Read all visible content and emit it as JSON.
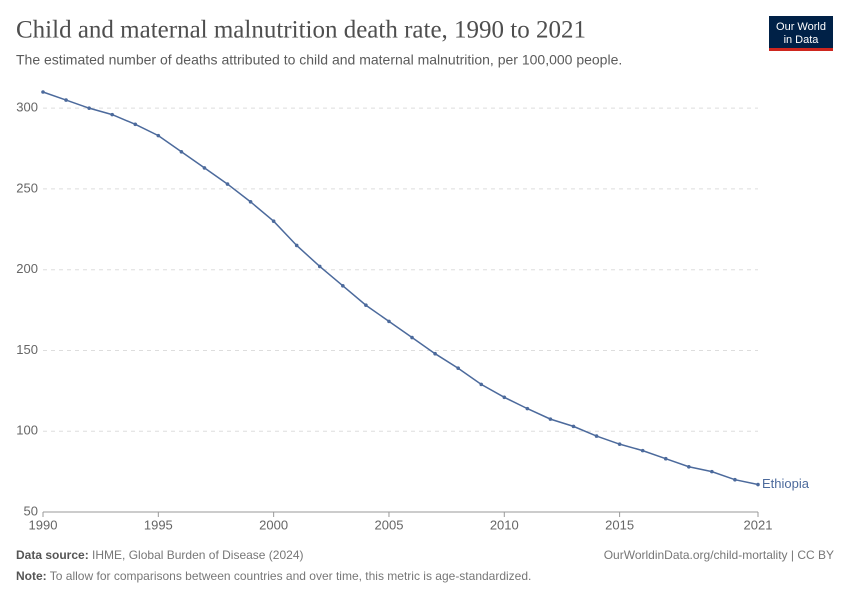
{
  "chart_data": {
    "type": "line",
    "title": "Child and maternal malnutrition death rate, 1990 to 2021",
    "subtitle": "The estimated number of deaths attributed to child and maternal malnutrition, per 100,000 people.",
    "x": [
      1990,
      1991,
      1992,
      1993,
      1994,
      1995,
      1996,
      1997,
      1998,
      1999,
      2000,
      2001,
      2002,
      2003,
      2004,
      2005,
      2006,
      2007,
      2008,
      2009,
      2010,
      2011,
      2012,
      2013,
      2014,
      2015,
      2016,
      2017,
      2018,
      2019,
      2020,
      2021
    ],
    "series": [
      {
        "name": "Ethiopia",
        "color": "#4c6a9c",
        "values": [
          310,
          305,
          300,
          296,
          290,
          283,
          273,
          263,
          253,
          242,
          230,
          215,
          202,
          190,
          178,
          168,
          158,
          148,
          139,
          129,
          121,
          114,
          107.5,
          103,
          97,
          92,
          88,
          83,
          78,
          75,
          70,
          67
        ]
      }
    ],
    "xlim": [
      1990,
      2021
    ],
    "xticks": [
      1990,
      1995,
      2000,
      2005,
      2010,
      2015,
      2021
    ],
    "ylim": [
      50,
      310
    ],
    "yticks": [
      50,
      100,
      150,
      200,
      250,
      300
    ],
    "grid": true
  },
  "logo": [
    "Our World",
    "in Data"
  ],
  "footer": {
    "source_label": "Data source:",
    "source": "IHME, Global Burden of Disease (2024)",
    "url": "OurWorldinData.org/child-mortality | CC BY",
    "note_label": "Note:",
    "note": "To allow for comparisons between countries and over time, this metric is age-standardized."
  }
}
